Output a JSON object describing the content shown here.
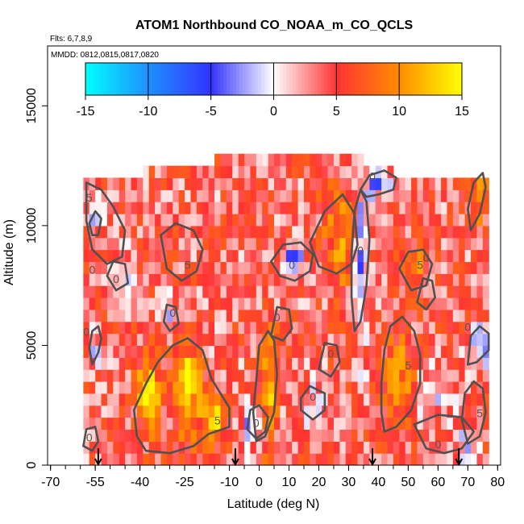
{
  "chart_data": {
    "type": "heatmap",
    "title": "ATOM1 Northbound CO_NOAA_m_CO_QCLS",
    "flights_label": "Flts: 6,7,8,9",
    "dates_label": "MMDD: 0812,0815,0817,0820",
    "xlabel": "Latitude (deg N)",
    "ylabel": "Altitude (m)",
    "xlim": [
      -71,
      81
    ],
    "ylim": [
      0,
      17500
    ],
    "x_ticks": [
      -70,
      -55,
      -40,
      -25,
      -10,
      0,
      10,
      20,
      30,
      40,
      50,
      60,
      70,
      80
    ],
    "x_tick_labels": [
      "-70",
      "-55",
      "-40",
      "-25",
      "-10",
      "0",
      "10",
      "20",
      "30",
      "40",
      "50",
      "60",
      "70",
      "80"
    ],
    "x_minor_step": 5,
    "y_ticks": [
      0,
      5000,
      10000,
      15000
    ],
    "y_tick_labels": [
      "0",
      "5000",
      "10000",
      "15000"
    ],
    "colorbar": {
      "range": [
        -15,
        15
      ],
      "ticks": [
        -15,
        -10,
        -5,
        0,
        5,
        10,
        15
      ],
      "tick_labels": [
        "-15",
        "-10",
        "-5",
        "0",
        "5",
        "10",
        "15"
      ],
      "stops": [
        {
          "v": -15,
          "color": "#00ffff"
        },
        {
          "v": -10,
          "color": "#1e90ff"
        },
        {
          "v": -5,
          "color": "#3333ff"
        },
        {
          "v": 0,
          "color": "#ffffff"
        },
        {
          "v": 5,
          "color": "#ff3333"
        },
        {
          "v": 10,
          "color": "#ff8c00"
        },
        {
          "v": 15,
          "color": "#ffff00"
        }
      ]
    },
    "grid": {
      "lat_start": -59,
      "lat_step": 2,
      "lat_count": 68,
      "alt_start": 0,
      "alt_step": 500,
      "alt_count": 26,
      "top_extent": [
        {
          "lat": -59,
          "alt": 12000
        },
        {
          "lat": -40,
          "alt": 12000
        },
        {
          "lat": -39,
          "alt": 12500
        },
        {
          "lat": -15,
          "alt": 12500
        },
        {
          "lat": -14,
          "alt": 13000
        },
        {
          "lat": 35,
          "alt": 13000
        },
        {
          "lat": 36,
          "alt": 12500
        },
        {
          "lat": 45,
          "alt": 12500
        },
        {
          "lat": 46,
          "alt": 12000
        },
        {
          "lat": 79,
          "alt": 12000
        }
      ],
      "background_mean": 4
    },
    "features": [
      {
        "lat": -37,
        "alt": 3000,
        "sigma_lat": 3,
        "sigma_alt": 1200,
        "amp": 9
      },
      {
        "lat": -24,
        "alt": 3200,
        "sigma_lat": 3,
        "sigma_alt": 1300,
        "amp": 10
      },
      {
        "lat": -15,
        "alt": 1800,
        "sigma_lat": 3,
        "sigma_alt": 700,
        "amp": 9
      },
      {
        "lat": 3,
        "alt": 3200,
        "sigma_lat": 2,
        "sigma_alt": 1800,
        "amp": 8
      },
      {
        "lat": 27,
        "alt": 9500,
        "sigma_lat": 4,
        "sigma_alt": 1500,
        "amp": 6
      },
      {
        "lat": 47,
        "alt": 3500,
        "sigma_lat": 4,
        "sigma_alt": 1500,
        "amp": 6
      },
      {
        "lat": 52,
        "alt": 8200,
        "sigma_lat": 3,
        "sigma_alt": 700,
        "amp": 6
      },
      {
        "lat": 74,
        "alt": 11500,
        "sigma_lat": 2,
        "sigma_alt": 1000,
        "amp": 6
      },
      {
        "lat": 34,
        "alt": 8500,
        "sigma_lat": 1.5,
        "sigma_alt": 2500,
        "amp": -8
      },
      {
        "lat": 40,
        "alt": 11800,
        "sigma_lat": 2.5,
        "sigma_alt": 500,
        "amp": -7
      },
      {
        "lat": 11,
        "alt": 8600,
        "sigma_lat": 3,
        "sigma_alt": 500,
        "amp": -7
      },
      {
        "lat": -55,
        "alt": 10700,
        "sigma_lat": 1.5,
        "sigma_alt": 500,
        "amp": -7
      },
      {
        "lat": -55,
        "alt": 4800,
        "sigma_lat": 1.5,
        "sigma_alt": 500,
        "amp": -6
      },
      {
        "lat": 74,
        "alt": 5000,
        "sigma_lat": 2.5,
        "sigma_alt": 700,
        "amp": -6
      },
      {
        "lat": 69,
        "alt": 1000,
        "sigma_lat": 3,
        "sigma_alt": 500,
        "amp": -5
      },
      {
        "lat": 58,
        "alt": 2800,
        "sigma_lat": 5,
        "sigma_alt": 900,
        "amp": -3
      },
      {
        "lat": -2,
        "alt": 1800,
        "sigma_lat": 3,
        "sigma_alt": 700,
        "amp": -6
      },
      {
        "lat": -30,
        "alt": 6200,
        "sigma_lat": 2,
        "sigma_alt": 600,
        "amp": -4
      },
      {
        "lat": 18,
        "alt": 2500,
        "sigma_lat": 3,
        "sigma_alt": 800,
        "amp": -4
      },
      {
        "lat": -47,
        "alt": 8000,
        "sigma_lat": 3,
        "sigma_alt": 800,
        "amp": -4
      }
    ],
    "contours": [
      {
        "label": "5",
        "label_lat": -57,
        "label_alt": 11000,
        "points": [
          [
            -58,
            11800
          ],
          [
            -53,
            11500
          ],
          [
            -49,
            10800
          ],
          [
            -45,
            9800
          ],
          [
            -46,
            8700
          ],
          [
            -51,
            8400
          ],
          [
            -56,
            9000
          ],
          [
            -58,
            10200
          ],
          [
            -58,
            11800
          ]
        ]
      },
      {
        "label": "5",
        "label_lat": -24,
        "label_alt": 8200,
        "points": [
          [
            -33,
            9600
          ],
          [
            -28,
            10100
          ],
          [
            -22,
            9800
          ],
          [
            -19,
            9000
          ],
          [
            -21,
            8100
          ],
          [
            -26,
            7700
          ],
          [
            -31,
            8200
          ],
          [
            -33,
            9600
          ]
        ]
      },
      {
        "label": "5",
        "label_lat": -14,
        "label_alt": 1700,
        "points": [
          [
            -41,
            1200
          ],
          [
            -38,
            600
          ],
          [
            -30,
            500
          ],
          [
            -22,
            800
          ],
          [
            -17,
            1300
          ],
          [
            -10,
            1600
          ],
          [
            -10,
            2400
          ],
          [
            -16,
            3600
          ],
          [
            -19,
            4800
          ],
          [
            -24,
            5300
          ],
          [
            -29,
            5000
          ],
          [
            -34,
            4300
          ],
          [
            -38,
            3400
          ],
          [
            -42,
            2300
          ],
          [
            -41,
            1200
          ]
        ]
      },
      {
        "label": "",
        "label_lat": 0,
        "label_alt": 0,
        "points": [
          [
            -1,
            1000
          ],
          [
            2,
            1200
          ],
          [
            5,
            2200
          ],
          [
            6,
            3800
          ],
          [
            5,
            5200
          ],
          [
            3,
            5600
          ],
          [
            0,
            5000
          ],
          [
            -1,
            3500
          ],
          [
            -2,
            2200
          ],
          [
            -1,
            1000
          ]
        ]
      },
      {
        "label": "",
        "label_lat": 0,
        "label_alt": 0,
        "points": [
          [
            17,
            9300
          ],
          [
            22,
            10600
          ],
          [
            28,
            11300
          ],
          [
            32,
            10500
          ],
          [
            33,
            9200
          ],
          [
            31,
            8400
          ],
          [
            26,
            8000
          ],
          [
            20,
            8300
          ],
          [
            17,
            9300
          ]
        ]
      },
      {
        "label": "5",
        "label_lat": 50,
        "label_alt": 4000,
        "points": [
          [
            42,
            1400
          ],
          [
            46,
            1600
          ],
          [
            51,
            2300
          ],
          [
            54,
            3400
          ],
          [
            54,
            4600
          ],
          [
            52,
            5600
          ],
          [
            48,
            6200
          ],
          [
            44,
            5800
          ],
          [
            42,
            4800
          ],
          [
            41,
            3400
          ],
          [
            41,
            2200
          ],
          [
            42,
            1400
          ]
        ]
      },
      {
        "label": "5",
        "label_lat": 54,
        "label_alt": 8200,
        "points": [
          [
            47,
            8200
          ],
          [
            50,
            8900
          ],
          [
            55,
            9000
          ],
          [
            58,
            8400
          ],
          [
            56,
            7500
          ],
          [
            51,
            7300
          ],
          [
            47,
            8200
          ]
        ]
      },
      {
        "label": "5",
        "label_lat": 74,
        "label_alt": 2000,
        "points": [
          [
            70,
            900
          ],
          [
            74,
            1200
          ],
          [
            76,
            2200
          ],
          [
            75,
            3200
          ],
          [
            72,
            3500
          ],
          [
            69,
            3000
          ],
          [
            68,
            1900
          ],
          [
            70,
            900
          ]
        ]
      },
      {
        "label": "",
        "label_lat": 0,
        "label_alt": 0,
        "points": [
          [
            71,
            9800
          ],
          [
            74,
            10500
          ],
          [
            76,
            11600
          ],
          [
            75,
            12200
          ],
          [
            72,
            11800
          ],
          [
            70,
            10700
          ],
          [
            71,
            9800
          ]
        ]
      },
      {
        "label": "0",
        "label_lat": 34,
        "label_alt": 8800,
        "points": [
          [
            32,
            5600
          ],
          [
            34,
            6000
          ],
          [
            36,
            7500
          ],
          [
            37,
            9400
          ],
          [
            36,
            11000
          ],
          [
            34,
            11500
          ],
          [
            32,
            10600
          ],
          [
            31,
            8800
          ],
          [
            31,
            7000
          ],
          [
            32,
            5600
          ]
        ]
      },
      {
        "label": "0",
        "label_lat": 38,
        "label_alt": 11900,
        "points": [
          [
            34,
            11500
          ],
          [
            37,
            12100
          ],
          [
            42,
            12300
          ],
          [
            46,
            12000
          ],
          [
            45,
            11500
          ],
          [
            40,
            11300
          ],
          [
            36,
            11200
          ],
          [
            34,
            11500
          ]
        ]
      },
      {
        "label": "0",
        "label_lat": 11,
        "label_alt": 8200,
        "points": [
          [
            4,
            8500
          ],
          [
            8,
            9200
          ],
          [
            14,
            9300
          ],
          [
            18,
            8800
          ],
          [
            17,
            8100
          ],
          [
            12,
            7700
          ],
          [
            7,
            7900
          ],
          [
            4,
            8500
          ]
        ]
      },
      {
        "label": "0",
        "label_lat": -56,
        "label_alt": 8000,
        "points": [
          [
            -57,
            10100
          ],
          [
            -55,
            10600
          ],
          [
            -53,
            10300
          ],
          [
            -54,
            9600
          ],
          [
            -56,
            9600
          ],
          [
            -57,
            10100
          ]
        ]
      },
      {
        "label": "0",
        "label_lat": -58,
        "label_alt": 5400,
        "points": [
          [
            -56,
            4200
          ],
          [
            -54,
            4700
          ],
          [
            -53,
            5300
          ],
          [
            -54,
            5800
          ],
          [
            -56,
            5600
          ],
          [
            -57,
            4900
          ],
          [
            -56,
            4200
          ]
        ]
      },
      {
        "label": "0",
        "label_lat": 70,
        "label_alt": 5600,
        "points": [
          [
            70,
            4200
          ],
          [
            73,
            4300
          ],
          [
            77,
            4800
          ],
          [
            77,
            5500
          ],
          [
            74,
            5800
          ],
          [
            71,
            5400
          ],
          [
            70,
            4200
          ]
        ]
      },
      {
        "label": "0",
        "label_lat": 60,
        "label_alt": 700,
        "points": [
          [
            52,
            1700
          ],
          [
            56,
            700
          ],
          [
            62,
            500
          ],
          [
            68,
            700
          ],
          [
            72,
            1400
          ],
          [
            68,
            2000
          ],
          [
            60,
            2100
          ],
          [
            52,
            1700
          ]
        ]
      },
      {
        "label": "0",
        "label_lat": -1,
        "label_alt": 1600,
        "points": [
          [
            -4,
            1500
          ],
          [
            -1,
            1100
          ],
          [
            2,
            1400
          ],
          [
            3,
            2000
          ],
          [
            0,
            2500
          ],
          [
            -3,
            2300
          ],
          [
            -4,
            1500
          ]
        ]
      },
      {
        "label": "0",
        "label_lat": -29,
        "label_alt": 6200,
        "points": [
          [
            -32,
            6000
          ],
          [
            -30,
            5600
          ],
          [
            -27,
            5900
          ],
          [
            -28,
            6600
          ],
          [
            -31,
            6700
          ],
          [
            -32,
            6000
          ]
        ]
      },
      {
        "label": "0",
        "label_lat": 18,
        "label_alt": 2700,
        "points": [
          [
            14,
            2300
          ],
          [
            18,
            1900
          ],
          [
            22,
            2300
          ],
          [
            22,
            3000
          ],
          [
            17,
            3300
          ],
          [
            14,
            2800
          ],
          [
            14,
            2300
          ]
        ]
      },
      {
        "label": "0",
        "label_lat": -48,
        "label_alt": 7600,
        "points": [
          [
            -51,
            7900
          ],
          [
            -48,
            7300
          ],
          [
            -44,
            7600
          ],
          [
            -45,
            8400
          ],
          [
            -49,
            8500
          ],
          [
            -51,
            7900
          ]
        ]
      },
      {
        "label": "0",
        "label_lat": -57,
        "label_alt": 1000,
        "points": [
          [
            -59,
            800
          ],
          [
            -56,
            600
          ],
          [
            -54,
            1000
          ],
          [
            -55,
            1600
          ],
          [
            -58,
            1500
          ],
          [
            -59,
            800
          ]
        ]
      },
      {
        "label": "0",
        "label_lat": 6,
        "label_alt": 6000,
        "points": [
          [
            4,
            5400
          ],
          [
            8,
            5200
          ],
          [
            11,
            5700
          ],
          [
            10,
            6500
          ],
          [
            6,
            6600
          ],
          [
            4,
            5400
          ]
        ]
      },
      {
        "label": "0",
        "label_lat": 24,
        "label_alt": 4500,
        "points": [
          [
            20,
            4000
          ],
          [
            24,
            3700
          ],
          [
            27,
            4300
          ],
          [
            26,
            5000
          ],
          [
            22,
            5100
          ],
          [
            20,
            4000
          ]
        ]
      },
      {
        "label": "0",
        "label_lat": 56,
        "label_alt": 8500,
        "points": [
          [
            53,
            6800
          ],
          [
            56,
            6500
          ],
          [
            59,
            7000
          ],
          [
            58,
            7700
          ],
          [
            55,
            7800
          ],
          [
            53,
            6800
          ]
        ]
      }
    ],
    "arrows_lat": [
      -54,
      -8,
      38,
      67
    ],
    "arrow_alt_top": 700
  }
}
